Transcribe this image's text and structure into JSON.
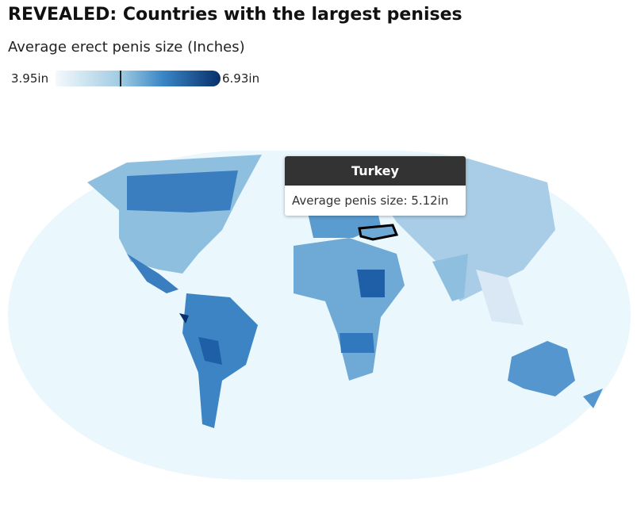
{
  "title": "REVEALED: Countries with the largest penises",
  "subtitle": "Average erect penis size (Inches)",
  "legend": {
    "min": 3.95,
    "max": 6.93,
    "min_label": "3.95in",
    "max_label": "6.93in"
  },
  "tooltip": {
    "country": "Turkey",
    "value": 5.12,
    "label": "Average penis size: 5.12in"
  }
}
